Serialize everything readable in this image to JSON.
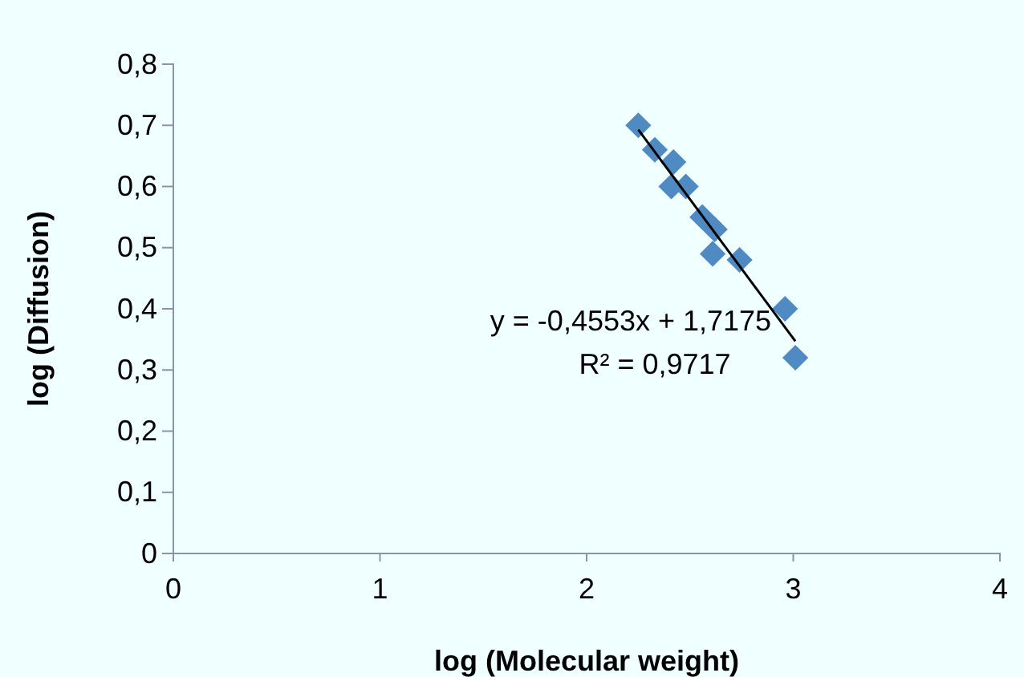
{
  "chart_data": {
    "type": "scatter",
    "xlabel": "log (Molecular weight)",
    "ylabel": "log (Diffusion)",
    "xlim": [
      0,
      4
    ],
    "xticks": [
      0,
      1,
      2,
      3,
      4
    ],
    "ylim": [
      0,
      0.8
    ],
    "yticks": [
      {
        "value": 0,
        "label": "0"
      },
      {
        "value": 0.1,
        "label": "0,1"
      },
      {
        "value": 0.2,
        "label": "0,2"
      },
      {
        "value": 0.3,
        "label": "0,3"
      },
      {
        "value": 0.4,
        "label": "0,4"
      },
      {
        "value": 0.5,
        "label": "0,5"
      },
      {
        "value": 0.6,
        "label": "0,6"
      },
      {
        "value": 0.7,
        "label": "0,7"
      },
      {
        "value": 0.8,
        "label": "0,8"
      }
    ],
    "grid": false,
    "marker": "diamond",
    "series": [
      {
        "color": "#4f8ac2",
        "x": [
          2.25,
          2.33,
          2.42,
          2.41,
          2.48,
          2.56,
          2.62,
          2.61,
          2.74,
          2.96,
          3.01
        ],
        "values": [
          0.7,
          0.66,
          0.64,
          0.6,
          0.6,
          0.55,
          0.53,
          0.49,
          0.48,
          0.4,
          0.32
        ]
      },
      {
        "type": "line",
        "color": "#000000",
        "marker": "none",
        "x": [
          2.25,
          3.01
        ],
        "values": [
          0.693,
          0.347
        ]
      }
    ],
    "annotations": [
      "y = -0,4553x + 1,7175",
      "R² = 0,9717"
    ]
  }
}
